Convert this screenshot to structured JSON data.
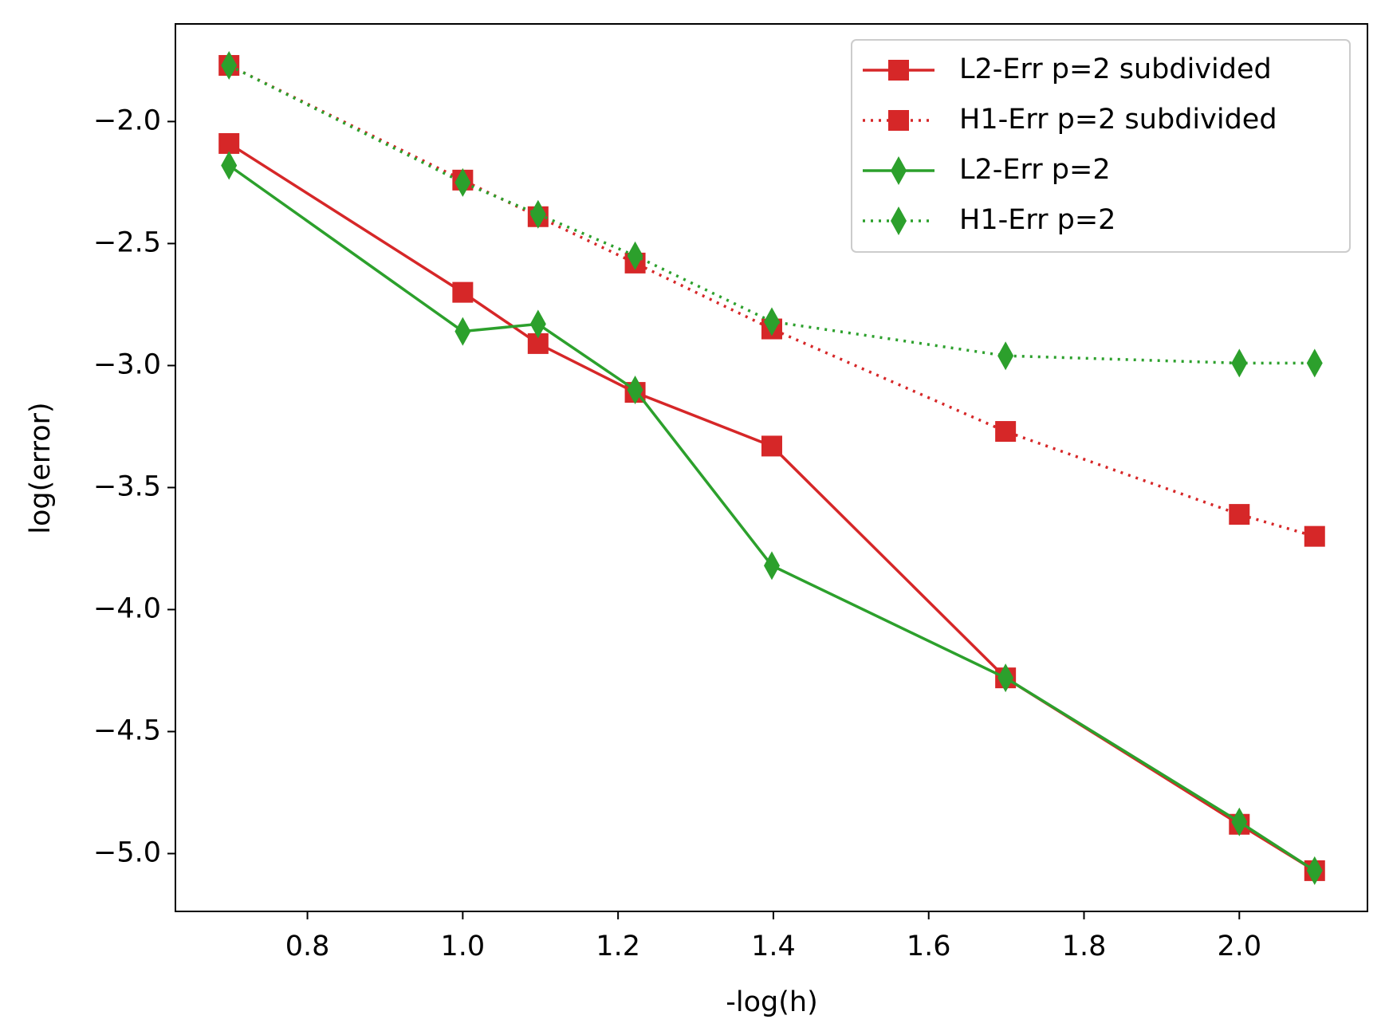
{
  "chart_data": {
    "type": "line",
    "x_label": "-log(h)",
    "y_label": "log(error)",
    "x": [
      0.699,
      1.0,
      1.097,
      1.222,
      1.398,
      1.699,
      2.0,
      2.097
    ],
    "series": [
      {
        "name": "L2-Err p=2 subdivided",
        "color": "#d62728",
        "linestyle": "solid",
        "marker": "square",
        "values": [
          -2.09,
          -2.7,
          -2.91,
          -3.11,
          -3.33,
          -4.28,
          -4.88,
          -5.07
        ]
      },
      {
        "name": "H1-Err p=2 subdivided",
        "color": "#d62728",
        "linestyle": "dotted",
        "marker": "square",
        "values": [
          -1.77,
          -2.24,
          -2.39,
          -2.58,
          -2.85,
          -3.27,
          -3.61,
          -3.7
        ]
      },
      {
        "name": "L2-Err p=2",
        "color": "#2ca02c",
        "linestyle": "solid",
        "marker": "diamond",
        "values": [
          -2.18,
          -2.86,
          -2.83,
          -3.1,
          -3.82,
          -4.28,
          -4.87,
          -5.07
        ]
      },
      {
        "name": "H1-Err p=2",
        "color": "#2ca02c",
        "linestyle": "dotted",
        "marker": "diamond",
        "values": [
          -1.77,
          -2.25,
          -2.38,
          -2.55,
          -2.82,
          -2.96,
          -2.99,
          -2.99
        ]
      }
    ],
    "xlim": [
      0.63,
      2.165
    ],
    "xticks": [
      0.8,
      {
        "value": 1.0,
        "label": "1.0"
      },
      1.2,
      1.4,
      1.6,
      1.8,
      {
        "value": 2.0,
        "label": "2.0"
      }
    ],
    "ylim": [
      -5.237,
      -1.6
    ],
    "yticks": [
      {
        "value": -2.0,
        "label": "−2.0"
      },
      {
        "value": -2.5,
        "label": "−2.5"
      },
      {
        "value": -3.0,
        "label": "−3.0"
      },
      {
        "value": -3.5,
        "label": "−3.5"
      },
      {
        "value": -4.0,
        "label": "−4.0"
      },
      {
        "value": -4.5,
        "label": "−4.5"
      },
      {
        "value": -5.0,
        "label": "−5.0"
      }
    ],
    "grid": false,
    "legend": "upper right"
  }
}
